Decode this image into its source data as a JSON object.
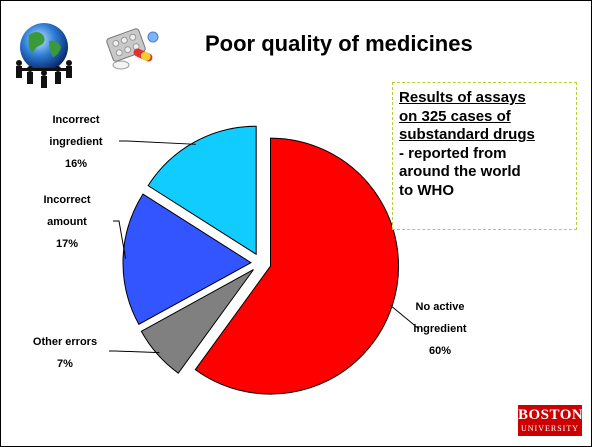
{
  "slide": {
    "title": "Poor quality of medicines",
    "callout_underlined": [
      "Results of assays",
      "on 325 cases of",
      "substandard drugs"
    ],
    "callout_plain": [
      "- reported from",
      "around the world",
      "to WHO"
    ],
    "logo_line1": "BOSTON",
    "logo_line2": "UNIVERSITY"
  },
  "chart_data": {
    "type": "pie",
    "title": "",
    "slices": [
      {
        "label": "No active ingredient",
        "value": 60,
        "text": "60%",
        "color": "#ff0000"
      },
      {
        "label": "Other errors",
        "value": 7,
        "text": "7%",
        "color": "#808080"
      },
      {
        "label": "Incorrect amount",
        "value": 17,
        "text": "17%",
        "color": "#3355ff"
      },
      {
        "label": "Incorrect ingredient",
        "value": 16,
        "text": "16%",
        "color": "#11ccff"
      }
    ],
    "label_lines": {
      "no_active": [
        "No active",
        "ingredient",
        "60%"
      ],
      "other": [
        "Other errors",
        "7%"
      ],
      "amount": [
        "Incorrect",
        "amount",
        "17%"
      ],
      "ingredient": [
        "Incorrect",
        "ingredient",
        "16%"
      ]
    }
  },
  "colors": {
    "callout_border": "#b3d334",
    "logo_bg": "#cc0000"
  },
  "icons": [
    "globe-people-icon",
    "pills-icon"
  ]
}
